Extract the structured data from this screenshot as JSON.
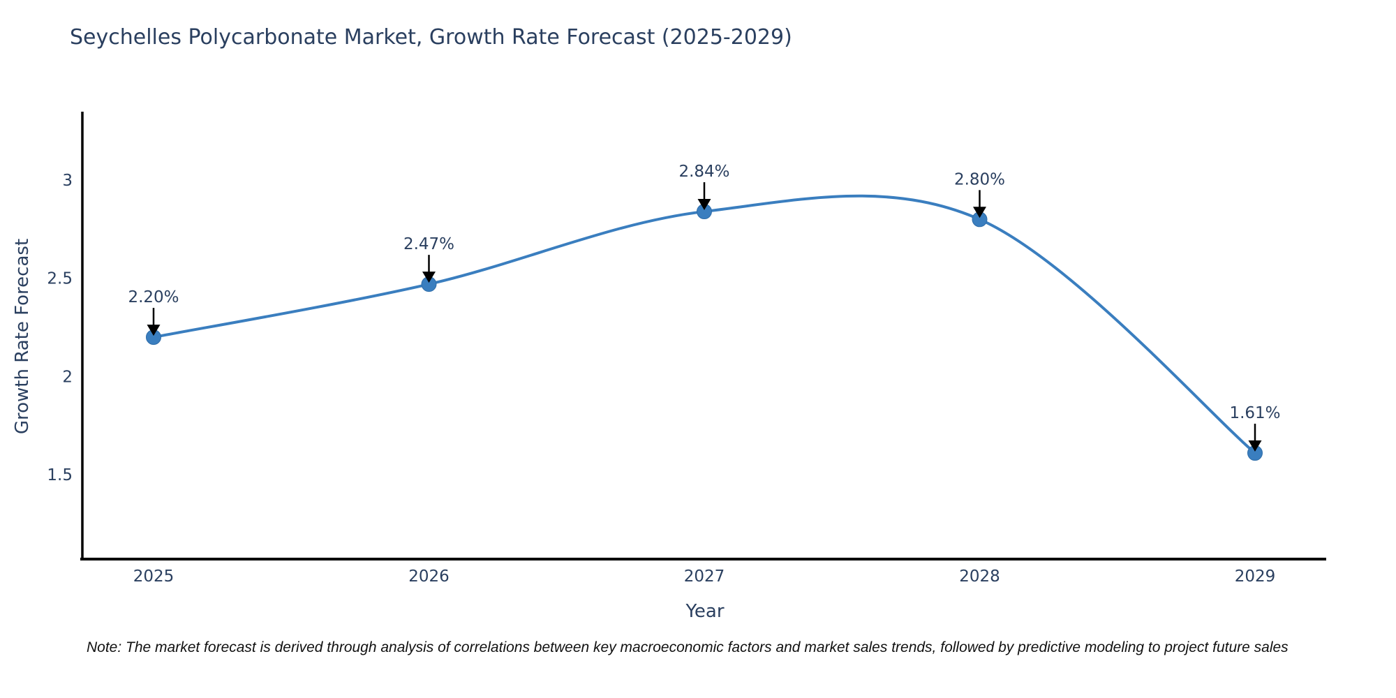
{
  "note": "Note: The market forecast is derived through analysis of correlations between key macroeconomic factors and market sales trends, followed by predictive modeling to project future sales",
  "colors": {
    "line": "#3a7ebf",
    "marker_fill": "#3a7ebf",
    "marker_edge": "#2e6ca8",
    "axis_line": "#000000",
    "title_text": "#2a3f5f",
    "tick_text": "#2a3f5f",
    "annotation_text": "#2a3f5f",
    "arrow": "#000000",
    "note_text": "#111111",
    "background": "#ffffff"
  },
  "chart_data": {
    "type": "line",
    "title": "Seychelles Polycarbonate Market, Growth Rate Forecast (2025-2029)",
    "xlabel": "Year",
    "ylabel": "Growth Rate Forecast",
    "x": [
      2025,
      2026,
      2027,
      2028,
      2029
    ],
    "values": [
      2.2,
      2.47,
      2.84,
      2.8,
      1.61
    ],
    "point_labels": [
      "2.20%",
      "2.47%",
      "2.84%",
      "2.80%",
      "1.61%"
    ],
    "xtick_labels": [
      "2025",
      "2026",
      "2027",
      "2028",
      "2029"
    ],
    "yticks": [
      1.5,
      2,
      2.5,
      3
    ],
    "ytick_labels": [
      "1.5",
      "2",
      "2.5",
      "3"
    ],
    "ylim": [
      1.07,
      3.35
    ],
    "xlim_years": [
      2024.74,
      2029.26
    ],
    "line_shape": "spline",
    "markers": true,
    "grid": false,
    "legend": false,
    "annotations_have_arrows": true
  }
}
